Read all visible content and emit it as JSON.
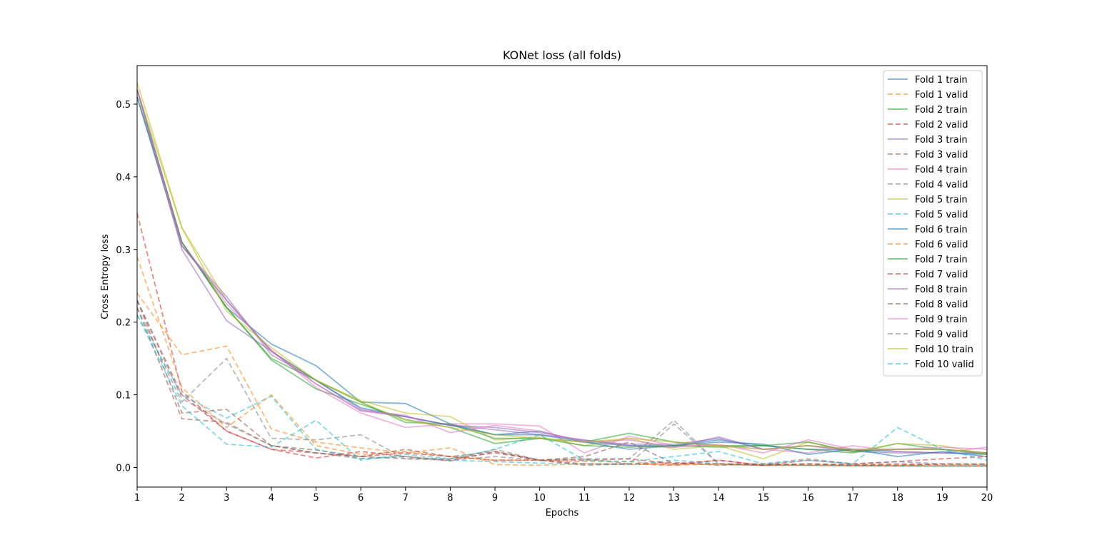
{
  "chart_data": {
    "type": "line",
    "title": "KONet loss (all folds)",
    "xlabel": "Epochs",
    "ylabel": "Cross Entropy loss",
    "xlim": [
      1,
      20
    ],
    "ylim": [
      -0.027,
      0.553
    ],
    "xticks": [
      1,
      2,
      3,
      4,
      5,
      6,
      7,
      8,
      9,
      10,
      11,
      12,
      13,
      14,
      15,
      16,
      17,
      18,
      19,
      20
    ],
    "yticks": [
      0.0,
      0.1,
      0.2,
      0.3,
      0.4,
      0.5
    ],
    "ytick_labels": [
      "0.0",
      "0.1",
      "0.2",
      "0.3",
      "0.4",
      "0.5"
    ],
    "legend_position": "top-right",
    "grid": false,
    "x": [
      1,
      2,
      3,
      4,
      5,
      6,
      7,
      8,
      9,
      10,
      11,
      12,
      13,
      14,
      15,
      16,
      17,
      18,
      19,
      20
    ],
    "series": [
      {
        "name": "Fold 1 train",
        "color": "#1f77b4",
        "dash": false,
        "values": [
          0.52,
          0.31,
          0.22,
          0.17,
          0.14,
          0.09,
          0.088,
          0.06,
          0.045,
          0.05,
          0.035,
          0.03,
          0.03,
          0.038,
          0.03,
          0.025,
          0.024,
          0.022,
          0.02,
          0.018
        ]
      },
      {
        "name": "Fold 1 valid",
        "color": "#ff7f0e",
        "dash": true,
        "values": [
          0.24,
          0.155,
          0.167,
          0.053,
          0.035,
          0.027,
          0.02,
          0.027,
          0.004,
          0.003,
          0.005,
          0.004,
          0.005,
          0.004,
          0.003,
          0.003,
          0.002,
          0.002,
          0.002,
          0.002
        ]
      },
      {
        "name": "Fold 2 train",
        "color": "#2ca02c",
        "dash": false,
        "values": [
          0.51,
          0.31,
          0.22,
          0.148,
          0.108,
          0.087,
          0.066,
          0.055,
          0.033,
          0.04,
          0.035,
          0.047,
          0.035,
          0.03,
          0.03,
          0.025,
          0.02,
          0.033,
          0.025,
          0.018
        ]
      },
      {
        "name": "Fold 2 valid",
        "color": "#d62728",
        "dash": true,
        "values": [
          0.35,
          0.105,
          0.05,
          0.025,
          0.013,
          0.022,
          0.015,
          0.009,
          0.022,
          0.01,
          0.005,
          0.005,
          0.003,
          0.01,
          0.003,
          0.005,
          0.004,
          0.005,
          0.004,
          0.004
        ]
      },
      {
        "name": "Fold 3 train",
        "color": "#9467bd",
        "dash": false,
        "values": [
          0.52,
          0.305,
          0.235,
          0.155,
          0.12,
          0.08,
          0.07,
          0.058,
          0.052,
          0.045,
          0.038,
          0.03,
          0.028,
          0.042,
          0.025,
          0.03,
          0.022,
          0.02,
          0.02,
          0.02
        ]
      },
      {
        "name": "Fold 3 valid",
        "color": "#8c564b",
        "dash": true,
        "values": [
          0.22,
          0.067,
          0.062,
          0.03,
          0.024,
          0.015,
          0.012,
          0.012,
          0.02,
          0.01,
          0.003,
          0.005,
          0.007,
          0.003,
          0.005,
          0.003,
          0.003,
          0.003,
          0.002,
          0.002
        ]
      },
      {
        "name": "Fold 4 train",
        "color": "#e377c2",
        "dash": false,
        "values": [
          0.52,
          0.31,
          0.225,
          0.162,
          0.11,
          0.075,
          0.055,
          0.06,
          0.06,
          0.057,
          0.02,
          0.043,
          0.03,
          0.03,
          0.025,
          0.02,
          0.03,
          0.022,
          0.02,
          0.028
        ]
      },
      {
        "name": "Fold 4 valid",
        "color": "#7f7f7f",
        "dash": true,
        "values": [
          0.22,
          0.09,
          0.15,
          0.04,
          0.038,
          0.045,
          0.012,
          0.01,
          0.025,
          0.01,
          0.012,
          0.005,
          0.06,
          0.005,
          0.003,
          0.003,
          0.003,
          0.002,
          0.002,
          0.002
        ]
      },
      {
        "name": "Fold 5 train",
        "color": "#bcbd22",
        "dash": false,
        "values": [
          0.52,
          0.33,
          0.23,
          0.16,
          0.12,
          0.092,
          0.075,
          0.07,
          0.038,
          0.042,
          0.03,
          0.04,
          0.025,
          0.03,
          0.012,
          0.035,
          0.022,
          0.033,
          0.03,
          0.018
        ]
      },
      {
        "name": "Fold 5 valid",
        "color": "#17becf",
        "dash": true,
        "values": [
          0.21,
          0.1,
          0.068,
          0.098,
          0.025,
          0.012,
          0.015,
          0.01,
          0.008,
          0.006,
          0.005,
          0.004,
          0.01,
          0.005,
          0.003,
          0.003,
          0.002,
          0.002,
          0.002,
          0.002
        ]
      },
      {
        "name": "Fold 6 train",
        "color": "#1f77b4",
        "dash": false,
        "values": [
          0.51,
          0.305,
          0.23,
          0.16,
          0.12,
          0.082,
          0.07,
          0.058,
          0.045,
          0.045,
          0.035,
          0.025,
          0.03,
          0.035,
          0.032,
          0.018,
          0.025,
          0.015,
          0.022,
          0.015
        ]
      },
      {
        "name": "Fold 6 valid",
        "color": "#ff7f0e",
        "dash": true,
        "values": [
          0.29,
          0.11,
          0.055,
          0.1,
          0.03,
          0.018,
          0.022,
          0.015,
          0.01,
          0.01,
          0.008,
          0.008,
          0.003,
          0.005,
          0.003,
          0.003,
          0.003,
          0.003,
          0.003,
          0.003
        ]
      },
      {
        "name": "Fold 7 train",
        "color": "#2ca02c",
        "dash": false,
        "values": [
          0.52,
          0.31,
          0.22,
          0.15,
          0.12,
          0.09,
          0.062,
          0.06,
          0.04,
          0.04,
          0.03,
          0.028,
          0.03,
          0.028,
          0.03,
          0.035,
          0.022,
          0.025,
          0.025,
          0.02
        ]
      },
      {
        "name": "Fold 7 valid",
        "color": "#d62728",
        "dash": true,
        "values": [
          0.23,
          0.1,
          0.05,
          0.025,
          0.02,
          0.015,
          0.02,
          0.015,
          0.01,
          0.01,
          0.01,
          0.012,
          0.005,
          0.01,
          0.003,
          0.01,
          0.005,
          0.008,
          0.012,
          0.015
        ]
      },
      {
        "name": "Fold 8 train",
        "color": "#9467bd",
        "dash": false,
        "values": [
          0.52,
          0.3,
          0.202,
          0.16,
          0.115,
          0.078,
          0.07,
          0.058,
          0.055,
          0.048,
          0.037,
          0.032,
          0.032,
          0.04,
          0.025,
          0.03,
          0.025,
          0.025,
          0.025,
          0.02
        ]
      },
      {
        "name": "Fold 8 valid",
        "color": "#8c564b",
        "dash": true,
        "values": [
          0.23,
          0.075,
          0.08,
          0.03,
          0.02,
          0.015,
          0.025,
          0.015,
          0.022,
          0.01,
          0.015,
          0.035,
          0.005,
          0.005,
          0.003,
          0.005,
          0.003,
          0.003,
          0.005,
          0.005
        ]
      },
      {
        "name": "Fold 9 train",
        "color": "#e377c2",
        "dash": false,
        "values": [
          0.52,
          0.305,
          0.23,
          0.16,
          0.115,
          0.078,
          0.072,
          0.048,
          0.058,
          0.05,
          0.035,
          0.038,
          0.028,
          0.032,
          0.02,
          0.038,
          0.025,
          0.025,
          0.028,
          0.025
        ]
      },
      {
        "name": "Fold 9 valid",
        "color": "#7f7f7f",
        "dash": true,
        "values": [
          0.23,
          0.095,
          0.06,
          0.03,
          0.02,
          0.012,
          0.015,
          0.01,
          0.015,
          0.01,
          0.012,
          0.012,
          0.065,
          0.005,
          0.005,
          0.012,
          0.005,
          0.008,
          0.005,
          0.004
        ]
      },
      {
        "name": "Fold 10 train",
        "color": "#bcbd22",
        "dash": false,
        "values": [
          0.53,
          0.33,
          0.215,
          0.165,
          0.12,
          0.09,
          0.065,
          0.055,
          0.045,
          0.04,
          0.035,
          0.04,
          0.035,
          0.03,
          0.025,
          0.03,
          0.025,
          0.025,
          0.025,
          0.02
        ]
      },
      {
        "name": "Fold 10 valid",
        "color": "#17becf",
        "dash": true,
        "values": [
          0.21,
          0.085,
          0.032,
          0.028,
          0.065,
          0.01,
          0.018,
          0.012,
          0.025,
          0.045,
          0.01,
          0.008,
          0.015,
          0.022,
          0.005,
          0.01,
          0.005,
          0.055,
          0.025,
          0.01
        ]
      }
    ]
  }
}
